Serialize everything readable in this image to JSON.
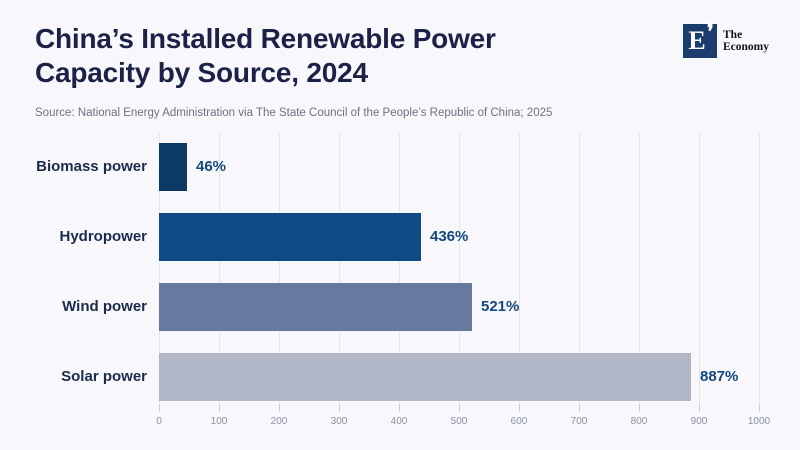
{
  "header": {
    "title": "China’s Installed Renewable Power Capacity by Source, 2024",
    "source": "Source: National Energy Administration via The State Council of the People’s Republic of China; 2025"
  },
  "logo": {
    "mark_letter": "E",
    "mark_apostrophe": "❜",
    "name_line1": "The",
    "name_line2": "Economy"
  },
  "chart_data": {
    "type": "bar",
    "orientation": "horizontal",
    "title": "China’s Installed Renewable Power Capacity by Source, 2024",
    "categories": [
      "Biomass power",
      "Hydropower",
      "Wind power",
      "Solar power"
    ],
    "values": [
      46,
      436,
      521,
      887
    ],
    "value_labels": [
      "46%",
      "436%",
      "521%",
      "887%"
    ],
    "bar_colors": [
      "#0b3a64",
      "#0f4a84",
      "#67799e",
      "#b2b7c8"
    ],
    "xlim": [
      0,
      1000
    ],
    "x_ticks": [
      0,
      100,
      200,
      300,
      400,
      500,
      600,
      700,
      800,
      900,
      1000
    ],
    "grid": true,
    "legend": "none",
    "value_label_color": "#14477e",
    "category_label_color": "#1c2b4d",
    "tick_label_color": "#8b90a3",
    "grid_color": "#e4e6ef",
    "background_color": "#f8f8fc"
  }
}
